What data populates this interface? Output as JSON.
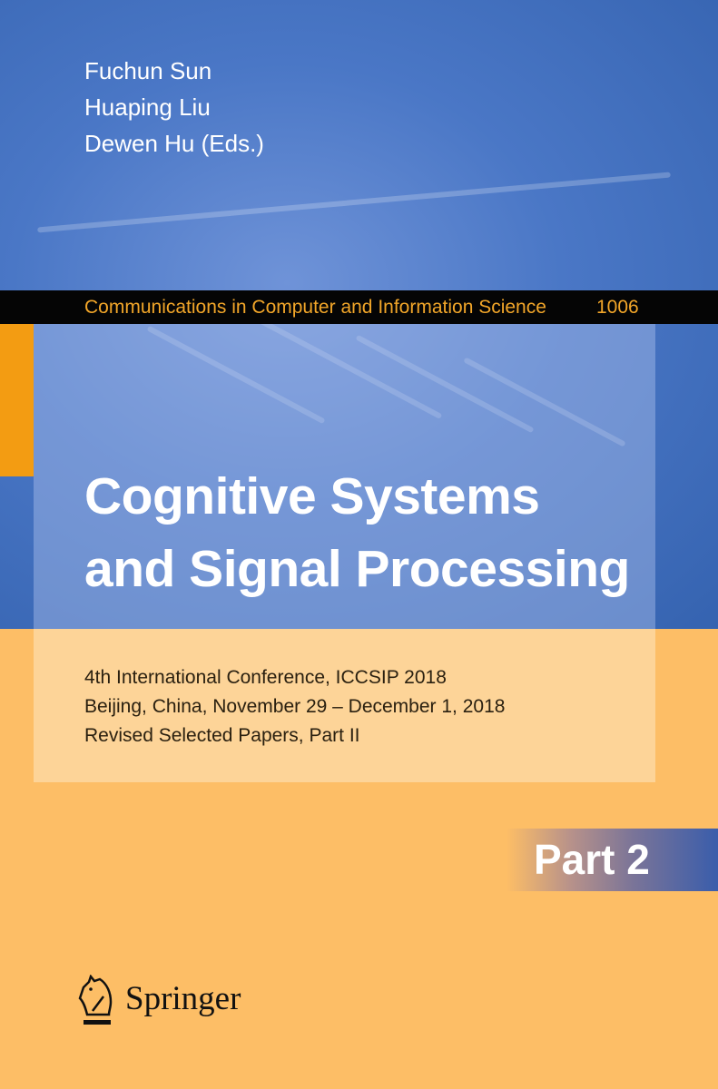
{
  "cover": {
    "editors": [
      "Fuchun Sun",
      "Huaping Liu",
      "Dewen Hu (Eds.)"
    ],
    "series_name": "Communications in Computer and Information Science",
    "series_number": "1006",
    "title_lines": [
      "Cognitive Systems",
      "and Signal Processing"
    ],
    "subtitle_lines": [
      "4th International Conference, ICCSIP 2018",
      "Beijing, China, November 29 – December 1, 2018",
      "Revised Selected Papers, Part II"
    ],
    "part_label": "Part 2",
    "publisher": "Springer",
    "colors": {
      "blue": "#3a68b4",
      "orange": "#fdbe66",
      "series_text": "#f2a629",
      "series_band": "#050505"
    }
  }
}
